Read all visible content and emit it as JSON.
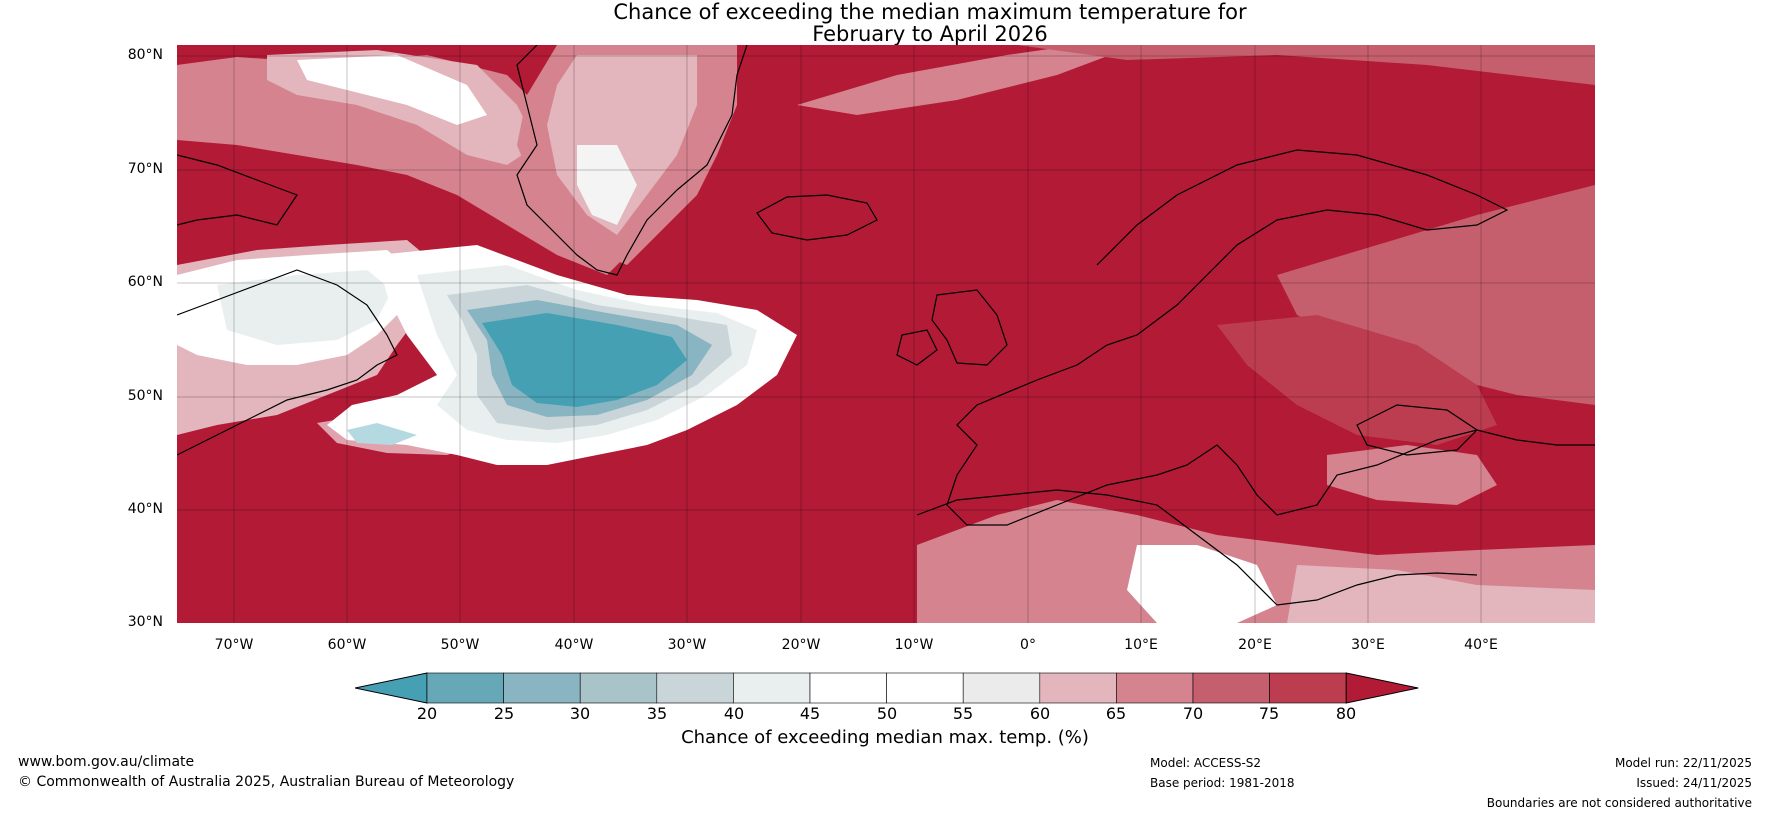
{
  "title": {
    "line1": "Chance of exceeding the median maximum temperature for",
    "line2": "February to April 2026"
  },
  "axes": {
    "lat_labels": [
      "80°N",
      "70°N",
      "60°N",
      "50°N",
      "40°N",
      "30°N"
    ],
    "lon_labels": [
      "70°W",
      "60°W",
      "50°W",
      "40°W",
      "30°W",
      "20°W",
      "10°W",
      "0°",
      "10°E",
      "20°E",
      "30°E",
      "40°E"
    ],
    "lat_range": [
      30,
      80
    ],
    "lon_range": [
      -75,
      50
    ]
  },
  "colorbar": {
    "ticks": [
      "20",
      "25",
      "30",
      "35",
      "40",
      "45",
      "50",
      "55",
      "60",
      "65",
      "70",
      "75",
      "80"
    ],
    "colors": [
      "#45a0b4",
      "#66a8b8",
      "#88b5c1",
      "#a9c4c9",
      "#c9d5d8",
      "#e9efef",
      "#ffffff",
      "#ffffff",
      "#ecebeb",
      "#e3b5bc",
      "#d4838f",
      "#c65f6d",
      "#bd3d50",
      "#b21a36"
    ],
    "extend": "both",
    "label": "Chance of exceeding median max. temp. (%)"
  },
  "footer": {
    "website": "www.bom.gov.au/climate",
    "copyright": "© Commonwealth of Australia 2025, Australian Bureau of Meteorology",
    "model": "Model: ACCESS-S2",
    "base_period": "Base period: 1981-2018",
    "model_run": "Model run: 22/11/2025",
    "issued": "Issued: 24/11/2025",
    "disclaimer": "Boundaries are not considered authoritative"
  }
}
